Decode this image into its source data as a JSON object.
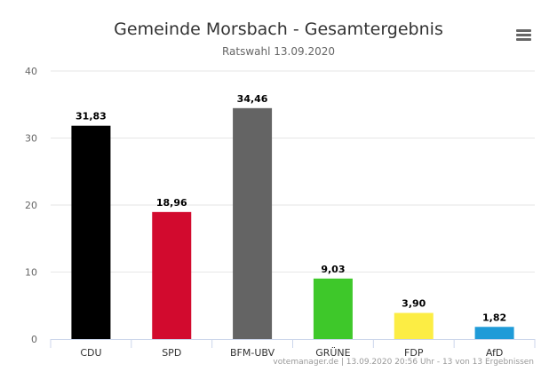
{
  "menu": {
    "icon": "hamburger-menu-icon"
  },
  "credits": "votemanager.de | 13.09.2020 20:56 Uhr - 13 von 13 Ergebnissen",
  "chart_data": {
    "type": "bar",
    "title": "Gemeinde Morsbach - Gesamtergebnis",
    "subtitle": "Ratswahl 13.09.2020",
    "categories": [
      "CDU",
      "SPD",
      "BFM-UBV",
      "GRÜNE",
      "FDP",
      "AfD"
    ],
    "values": [
      31.83,
      18.96,
      34.46,
      9.03,
      3.9,
      1.82
    ],
    "value_labels": [
      "31,83",
      "18,96",
      "34,46",
      "9,03",
      "3,90",
      "1,82"
    ],
    "colors": [
      "#000000",
      "#d20a2e",
      "#646464",
      "#3ec82a",
      "#fced44",
      "#1f9bd8"
    ],
    "xlabel": "",
    "ylabel": "",
    "ylim": [
      0,
      40
    ],
    "yticks": [
      0,
      10,
      20,
      30,
      40
    ],
    "grid": true,
    "legend": "none"
  }
}
